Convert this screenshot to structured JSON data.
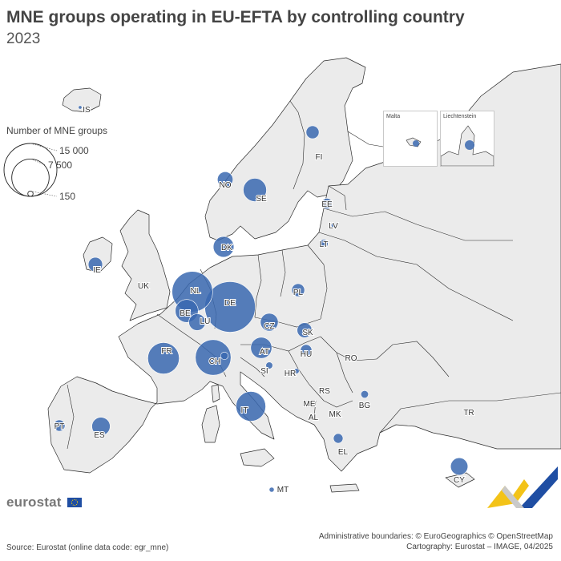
{
  "title": "MNE groups operating in EU-EFTA by controlling country",
  "subtitle": "2023",
  "legend": {
    "title": "Number of MNE groups",
    "entries": [
      {
        "label": "15 000",
        "value": 15000
      },
      {
        "label": "7 500",
        "value": 7500
      },
      {
        "label": "150",
        "value": 150
      }
    ]
  },
  "insets": {
    "malta_label": "Malta",
    "liechtenstein_label": "Liechtenstein"
  },
  "countries": [
    {
      "code": "IS",
      "value": 60
    },
    {
      "code": "NO",
      "value": 1300
    },
    {
      "code": "SE",
      "value": 2900
    },
    {
      "code": "FI",
      "value": 900
    },
    {
      "code": "EE",
      "value": 600
    },
    {
      "code": "LV",
      "value": 100
    },
    {
      "code": "LT",
      "value": 400
    },
    {
      "code": "DK",
      "value": 2300
    },
    {
      "code": "IE",
      "value": 1100
    },
    {
      "code": "NL",
      "value": 8800
    },
    {
      "code": "BE",
      "value": 2800
    },
    {
      "code": "LU",
      "value": 1500
    },
    {
      "code": "DE",
      "value": 13700
    },
    {
      "code": "PL",
      "value": 900
    },
    {
      "code": "CZ",
      "value": 1700
    },
    {
      "code": "SK",
      "value": 1200
    },
    {
      "code": "AT",
      "value": 2400
    },
    {
      "code": "HU",
      "value": 700
    },
    {
      "code": "CH",
      "value": 6800
    },
    {
      "code": "FR",
      "value": 5300
    },
    {
      "code": "SI",
      "value": 250
    },
    {
      "code": "HR",
      "value": 150
    },
    {
      "code": "IT",
      "value": 4700
    },
    {
      "code": "PT",
      "value": 700
    },
    {
      "code": "ES",
      "value": 1800
    },
    {
      "code": "BG",
      "value": 300
    },
    {
      "code": "EL",
      "value": 500
    },
    {
      "code": "CY",
      "value": 1600
    },
    {
      "code": "MT",
      "value": 130
    },
    {
      "code": "LI",
      "value": 300
    }
  ],
  "non_reporting_labels": [
    "UK",
    "RO",
    "RS",
    "ME",
    "AL",
    "MK",
    "TR"
  ],
  "brand": {
    "name": "eurostat"
  },
  "footer": {
    "boundaries": "Administrative boundaries: © EuroGeographics © OpenStreetMap",
    "cartography": "Cartography: Eurostat – IMAGE, 04/2025",
    "source": "Source: Eurostat (online data code: egr_mne)"
  },
  "colors": {
    "bubble": "#3a68b0",
    "land": "#ebebeb",
    "border": "#2b2b2b",
    "sea": "#ffffff"
  }
}
